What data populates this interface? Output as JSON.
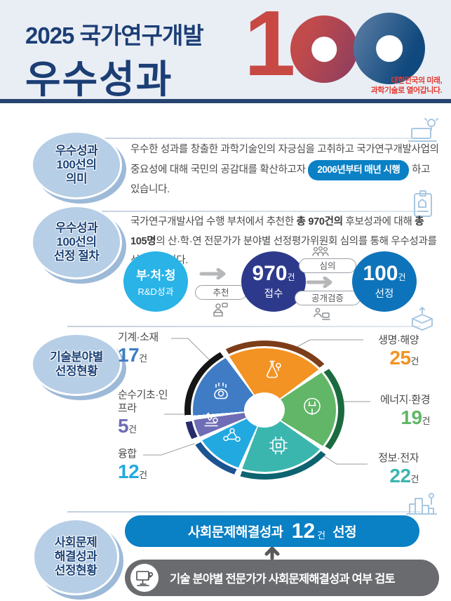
{
  "header": {
    "title_line1": "2025 국가연구개발",
    "title_line2": "우수성과",
    "logo_number_one": "1",
    "tagline_line1": "대한민국의 미래,",
    "tagline_line2": "과학기술로 열어갑니다."
  },
  "colors": {
    "title_navy": "#1c3e75",
    "divider_navy": "#25446f",
    "accent_blue": "#0a80c5",
    "flow_step1_bg": "#29b3e6",
    "flow_step2_bg": "#2d3a8c",
    "flow_step3_bg": "#0d74bb",
    "social_note_bg": "#696b6e",
    "badge_fill": "#b6cee6",
    "logo_red": "#c84944",
    "tagline_red": "#e23b31"
  },
  "sections": {
    "meaning": {
      "badge_lines": [
        "우수성과",
        "100선의",
        "의미"
      ],
      "text_before": "우수한 성과를 창출한 과학기술인의 자긍심을 고취하고 국가연구개발사업의 중요성에 대해 국민의 공감대를 확산하고자",
      "highlight_pill": "2006년부터 매년 시행",
      "text_after": "하고 있습니다."
    },
    "process": {
      "badge_lines": [
        "우수성과",
        "100선의",
        "선정 절차"
      ],
      "p1": "국가연구개발사업 수행 부처에서 추천한 ",
      "b1": "총 970건의",
      "p2": " 후보성과에 대해 ",
      "b2": "총 105명",
      "p3": "의 산·학·연 전문가가 분야별 선정평가위원회 심의를 통해 우수성과를 선정했습니다.",
      "flow": {
        "step1_line1": "부·처·청",
        "step1_line2": "R&D성과",
        "recommend_label": "추천",
        "step2_number": "970",
        "step2_unit": "건",
        "step2_label": "접수",
        "review_label": "심의",
        "verify_label": "공개검증",
        "step3_number": "100",
        "step3_unit": "건",
        "step3_label": "선정"
      }
    },
    "fields": {
      "badge_lines": [
        "기술분야별",
        "선정현황"
      ]
    },
    "social": {
      "badge_lines": [
        "사회문제",
        "해결성과",
        "선정현황"
      ],
      "result_prefix": "사회문제해결성과",
      "result_number": "12",
      "result_unit": "건",
      "result_suffix": "선정",
      "note": "기술 분야별 전문가가 사회문제해결성과 여부 검토"
    }
  },
  "chart_data": {
    "type": "pie",
    "title": "기술분야별 선정현황",
    "unit": "건",
    "categories": [
      "생명·해양",
      "에너지·환경",
      "정보·전자",
      "융합",
      "순수기초·인프라",
      "기계·소재"
    ],
    "values": [
      25,
      19,
      22,
      12,
      5,
      17
    ],
    "total": 100,
    "colors": [
      "#f39323",
      "#61b767",
      "#3bb6af",
      "#22a9e0",
      "#6f6db5",
      "#3f7cc5"
    ],
    "arc_colors": [
      "#7c3d18",
      "#1c6a40",
      "#0d6370",
      "#1c5391",
      "#272c6d",
      "#151515"
    ],
    "start_angle_deg": -35,
    "legend_position": "around",
    "donut": true
  }
}
